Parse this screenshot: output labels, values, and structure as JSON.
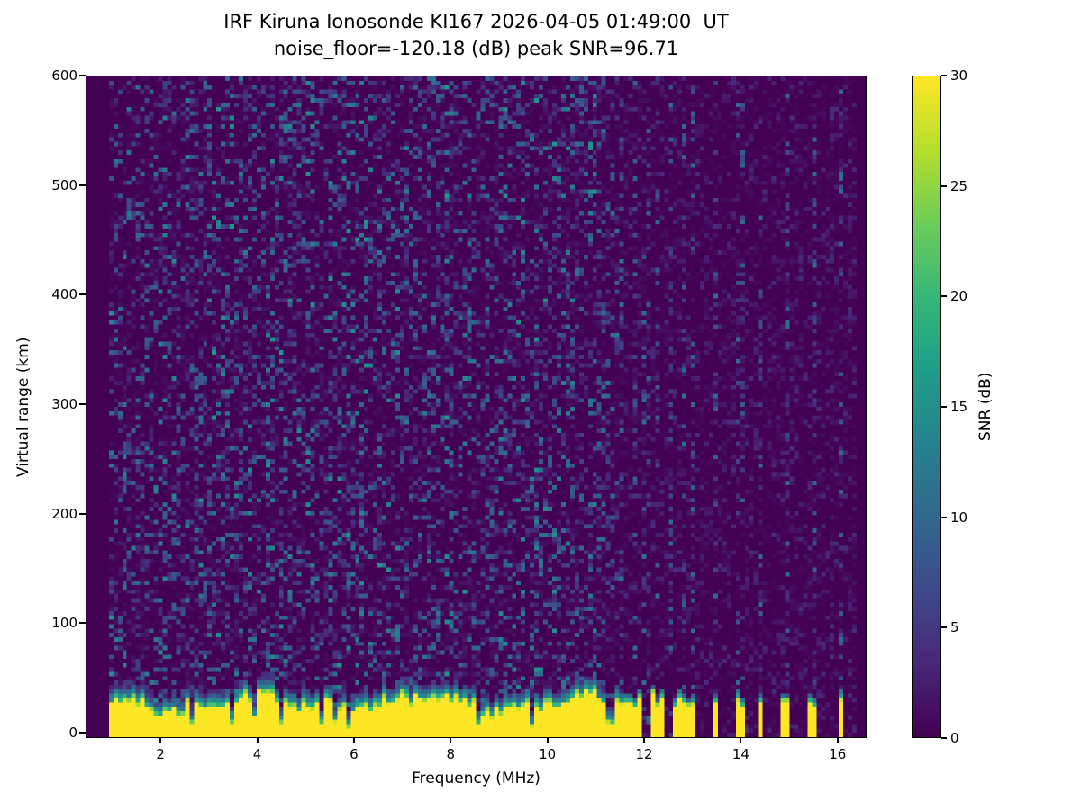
{
  "chart_data": {
    "type": "heatmap",
    "title": "IRF Kiruna Ionosonde KI167 2026-04-05 01:49:00  UT",
    "subtitle": "noise_floor=-120.18 (dB) peak SNR=96.71",
    "station": "IRF Kiruna Ionosonde KI167",
    "timestamp_ut": "2026-04-05 01:49:00",
    "noise_floor_db": -120.18,
    "peak_snr_db": 96.71,
    "xlabel": "Frequency (MHz)",
    "ylabel": "Virtual range (km)",
    "x_range": [
      0.45,
      16.6
    ],
    "y_range": [
      -5,
      600
    ],
    "x_ticks": [
      2,
      4,
      6,
      8,
      10,
      12,
      14,
      16
    ],
    "y_ticks": [
      0,
      100,
      200,
      300,
      400,
      500,
      600
    ],
    "grid": false,
    "colormap": "viridis",
    "colorbar": {
      "label": "SNR (dB)",
      "ticks": [
        0,
        5,
        10,
        15,
        20,
        25,
        30
      ],
      "vmin": 0,
      "vmax": 30,
      "position": "right"
    },
    "features": {
      "background_snr_db": 0,
      "speckle_noise_db_max": 13,
      "data_f_start": 0.9,
      "data_f_end": 16.45,
      "ground_clutter": {
        "f_start": 0.9,
        "f_end": 11.63,
        "snr_db": 30,
        "top_km_mean": 30,
        "top_km_jitter": 12,
        "notch_probability": 0.1
      },
      "dense_stripes": [
        [
          11.68,
          30
        ],
        [
          11.76,
          38
        ],
        [
          11.85,
          26
        ],
        [
          11.95,
          35
        ],
        [
          12.05,
          30
        ],
        [
          12.16,
          40
        ],
        [
          12.28,
          28
        ],
        [
          12.4,
          34
        ],
        [
          12.52,
          30
        ],
        [
          12.62,
          26
        ],
        [
          12.72,
          34
        ],
        [
          12.82,
          30
        ],
        [
          12.95,
          28
        ],
        [
          13.05,
          29
        ]
      ],
      "sparse_stripes": [
        [
          13.5,
          30
        ],
        [
          13.98,
          33
        ],
        [
          14.08,
          26
        ],
        [
          14.45,
          30
        ],
        [
          14.93,
          32
        ],
        [
          15.45,
          30
        ],
        [
          15.56,
          26
        ],
        [
          16.05,
          33
        ]
      ],
      "faint_noise_columns": [
        11.8,
        12.05,
        12.3,
        12.55,
        12.8,
        13.05,
        13.5,
        14.0,
        14.45,
        14.95,
        15.5,
        16.05
      ]
    },
    "render": {
      "cols": 174,
      "rows": 152,
      "seed": 167
    }
  }
}
